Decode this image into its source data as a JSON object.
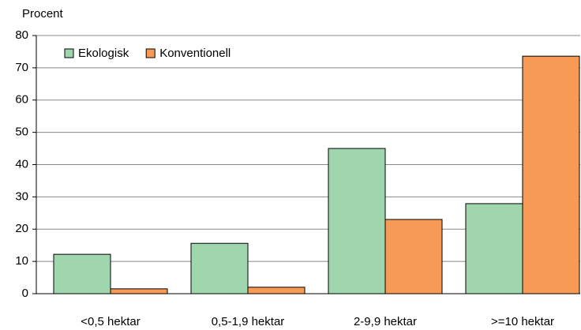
{
  "chart_data": {
    "type": "bar",
    "y_label": "Procent",
    "categories": [
      "<0,5 hektar",
      "0,5-1,9 hektar",
      "2-9,9 hektar",
      ">=10 hektar"
    ],
    "series": [
      {
        "name": "Ekologisk",
        "color": "#9fd6ad",
        "values": [
          12.2,
          15.6,
          45,
          27.9
        ]
      },
      {
        "name": "Konventionell",
        "color": "#f79a55",
        "values": [
          1.5,
          2,
          23,
          73.6
        ]
      }
    ],
    "ylim": [
      0,
      80
    ],
    "yticks": [
      0,
      10,
      20,
      30,
      40,
      50,
      60,
      70,
      80
    ],
    "grid": true,
    "legend": "top-left"
  }
}
